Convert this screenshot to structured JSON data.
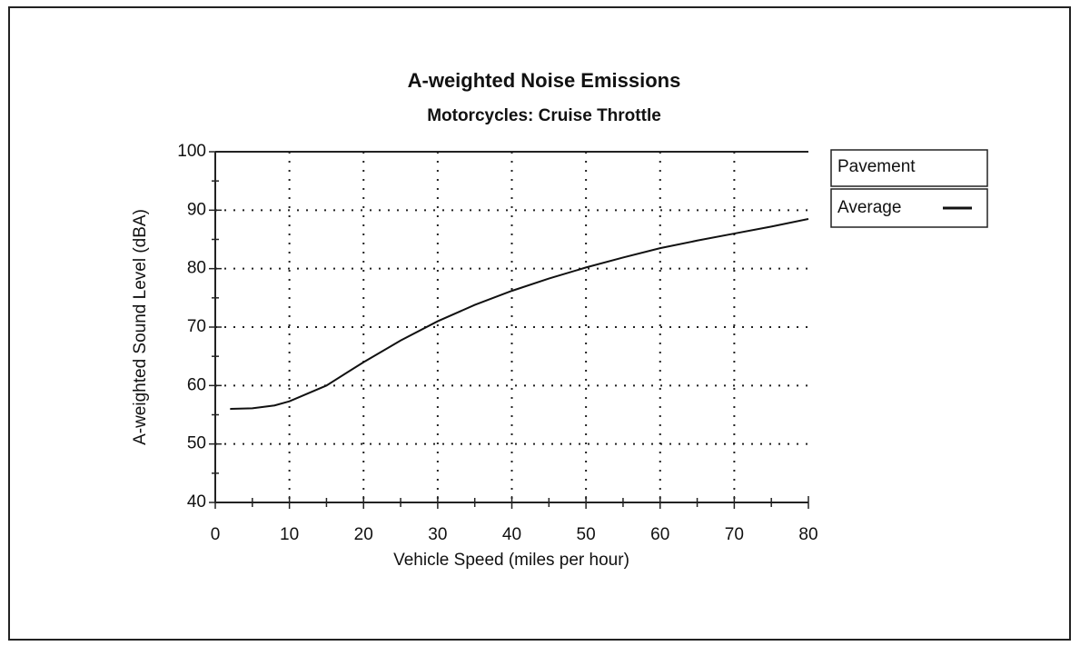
{
  "chart_data": {
    "type": "line",
    "title": "A-weighted Noise Emissions",
    "subtitle": "Motorcycles: Cruise Throttle",
    "x_label": "Vehicle Speed (miles per hour)",
    "y_label": "A-weighted Sound Level (dBA)",
    "legend_title": "Pavement",
    "x": [
      2,
      5,
      8,
      10,
      15,
      20,
      25,
      30,
      35,
      40,
      45,
      50,
      55,
      60,
      65,
      70,
      75,
      80
    ],
    "series": [
      {
        "name": "Average",
        "color": "#111111",
        "values": [
          56,
          56.1,
          56.6,
          57.3,
          60,
          64,
          67.7,
          71,
          73.8,
          76.2,
          78.3,
          80.2,
          81.9,
          83.5,
          84.8,
          86,
          87.2,
          88.5
        ]
      }
    ],
    "xlim": [
      0,
      80
    ],
    "xticks": [
      0,
      10,
      20,
      30,
      40,
      50,
      60,
      70,
      80
    ],
    "ylim": [
      40,
      100
    ],
    "yticks": [
      40,
      50,
      60,
      70,
      80,
      90,
      100
    ],
    "grid": true
  }
}
